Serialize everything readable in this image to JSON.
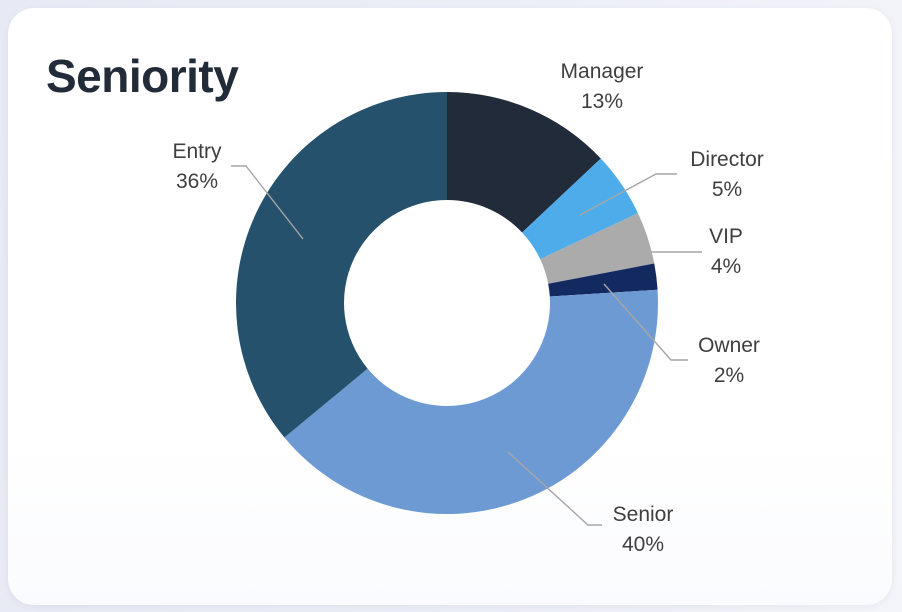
{
  "title": "Seniority",
  "chart_data": {
    "type": "pie",
    "subtype": "donut",
    "title": "Seniority",
    "unit": "%",
    "direction": "clockwise",
    "start_angle_deg": 0,
    "hole_ratio": 0.49,
    "legend_position": "none",
    "labels_style": "outside-callouts",
    "label_color": "#3f3f3f",
    "leader_line_color": "#a6a6a6",
    "segments": [
      {
        "label": "Manager",
        "value": 13,
        "pct_text": "13%",
        "color": "#212b3a"
      },
      {
        "label": "Director",
        "value": 5,
        "pct_text": "5%",
        "color": "#4dace9"
      },
      {
        "label": "VIP",
        "value": 4,
        "pct_text": "4%",
        "color": "#ababab"
      },
      {
        "label": "Owner",
        "value": 2,
        "pct_text": "2%",
        "color": "#132a60"
      },
      {
        "label": "Senior",
        "value": 40,
        "pct_text": "40%",
        "color": "#6e9ad4"
      },
      {
        "label": "Entry",
        "value": 36,
        "pct_text": "36%",
        "color": "#25516d"
      }
    ]
  }
}
